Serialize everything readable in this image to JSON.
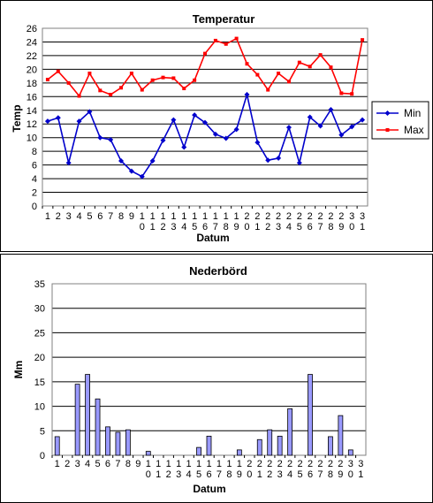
{
  "chart_data": [
    {
      "type": "line",
      "title": "Temperatur",
      "xlabel": "Datum",
      "ylabel": "Temp",
      "ylim": [
        0,
        26
      ],
      "ystep": 2,
      "grid": true,
      "legend_position": "right",
      "x": [
        1,
        2,
        3,
        4,
        5,
        6,
        7,
        8,
        9,
        10,
        11,
        12,
        13,
        14,
        15,
        16,
        17,
        18,
        19,
        20,
        21,
        22,
        23,
        24,
        25,
        26,
        27,
        28,
        29,
        30,
        31
      ],
      "series": [
        {
          "name": "Min",
          "color": "#0000cc",
          "marker": "diamond",
          "values": [
            12.4,
            12.9,
            6.3,
            12.4,
            13.8,
            10.0,
            9.7,
            6.6,
            5.1,
            4.3,
            6.6,
            9.6,
            12.6,
            8.6,
            13.3,
            12.2,
            10.5,
            9.9,
            11.2,
            16.3,
            9.3,
            6.7,
            7.0,
            11.5,
            6.3,
            13.0,
            11.7,
            14.1,
            10.4,
            11.6,
            12.6
          ]
        },
        {
          "name": "Max",
          "color": "#ff0000",
          "marker": "square",
          "values": [
            18.5,
            19.7,
            18.0,
            16.1,
            19.4,
            16.9,
            16.3,
            17.3,
            19.4,
            17.0,
            18.4,
            18.8,
            18.7,
            17.2,
            18.4,
            22.3,
            24.2,
            23.7,
            24.5,
            20.8,
            19.2,
            17.0,
            19.4,
            18.2,
            21.0,
            20.4,
            22.1,
            20.3,
            16.5,
            16.4,
            24.3
          ]
        }
      ]
    },
    {
      "type": "bar",
      "title": "Nederbörd",
      "xlabel": "Datum",
      "ylabel": "Mm",
      "ylim": [
        0,
        35
      ],
      "ystep": 5,
      "grid": true,
      "bar_color": "#9999ff",
      "categories": [
        1,
        2,
        3,
        4,
        5,
        6,
        7,
        8,
        9,
        10,
        11,
        12,
        13,
        14,
        15,
        16,
        17,
        18,
        19,
        20,
        21,
        22,
        23,
        24,
        25,
        26,
        27,
        28,
        29,
        30,
        31
      ],
      "values": [
        3.8,
        0,
        14.5,
        16.5,
        11.5,
        5.8,
        4.7,
        5.2,
        0,
        0.8,
        0,
        0,
        0,
        0,
        1.6,
        3.9,
        0,
        0,
        1.1,
        0,
        3.2,
        5.2,
        3.9,
        9.5,
        0,
        16.5,
        0,
        3.8,
        8.1,
        1.1,
        0
      ]
    }
  ]
}
